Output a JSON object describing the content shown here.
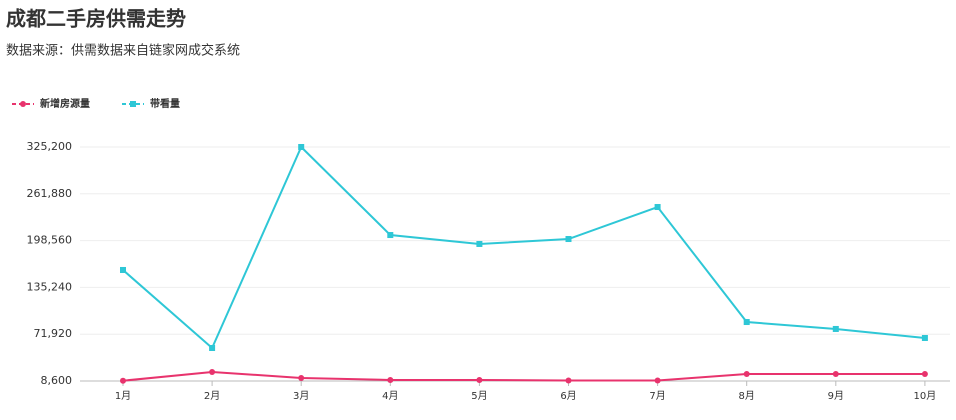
{
  "chart_data": {
    "type": "line",
    "title": "成都二手房供需走势",
    "subtitle": "数据来源：供需数据来自链家网成交系统",
    "categories": [
      "1月",
      "2月",
      "3月",
      "4月",
      "5月",
      "6月",
      "7月",
      "8月",
      "9月",
      "10月"
    ],
    "series": [
      {
        "name": "新增房源量",
        "color": "#e8336d",
        "marker": "circle",
        "values": [
          9000,
          20800,
          12700,
          10000,
          10000,
          9300,
          9300,
          18100,
          18100,
          18100
        ]
      },
      {
        "name": "带看量",
        "color": "#2ec7d6",
        "marker": "square",
        "values": [
          158800,
          53250,
          325200,
          206100,
          194000,
          200700,
          244000,
          88400,
          79000,
          66800
        ]
      }
    ],
    "ylim": [
      8600,
      325200
    ],
    "yticks": [
      {
        "value": 8600,
        "label": "8,600"
      },
      {
        "value": 71920,
        "label": "71,920"
      },
      {
        "value": 135240,
        "label": "135,240"
      },
      {
        "value": 198560,
        "label": "198,560"
      },
      {
        "value": 261880,
        "label": "261,880"
      },
      {
        "value": 325200,
        "label": "325,200"
      }
    ],
    "grid": true,
    "legend": "top-left"
  }
}
